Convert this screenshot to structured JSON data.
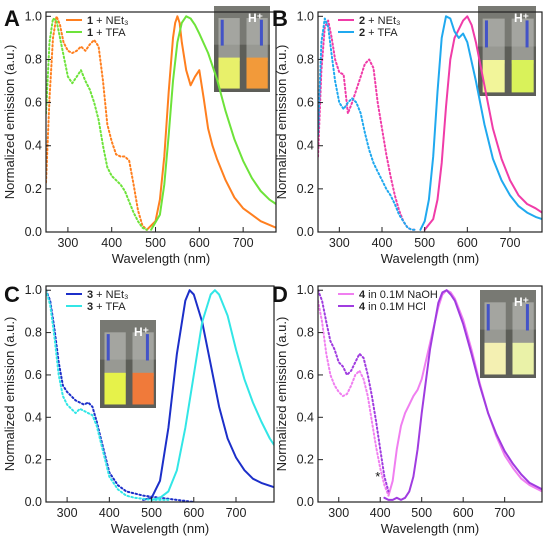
{
  "chart_data": [
    {
      "panel": "A",
      "type": "line",
      "xlabel": "Wavelength (nm)",
      "ylabel": "Normalized emission (a.u.)",
      "xlim": [
        250,
        775
      ],
      "ylim": [
        0,
        1.02
      ],
      "xticks": [
        300,
        400,
        500,
        600,
        700
      ],
      "yticks": [
        0.0,
        0.2,
        0.4,
        0.6,
        0.8,
        1.0
      ],
      "legend_position": "top-left",
      "photo_label": "H⁺",
      "series": [
        {
          "name": "1 + NEt₃",
          "compound": "1",
          "reagent": " + NEt₃",
          "color": "#ff7f1f",
          "excitation": {
            "x": [
              250,
              258,
              266,
              274,
              282,
              290,
              300,
              310,
              320,
              330,
              340,
              350,
              360,
              370,
              380,
              390,
              400,
              410,
              420,
              430,
              440,
              450,
              460,
              470,
              480
            ],
            "y": [
              0.23,
              0.62,
              0.9,
              1.0,
              0.96,
              0.88,
              0.84,
              0.83,
              0.84,
              0.86,
              0.84,
              0.87,
              0.89,
              0.86,
              0.7,
              0.5,
              0.42,
              0.36,
              0.35,
              0.35,
              0.33,
              0.22,
              0.1,
              0.03,
              0.01
            ]
          },
          "emission": {
            "x": [
              480,
              500,
              510,
              520,
              530,
              540,
              545,
              550,
              555,
              560,
              570,
              580,
              590,
              600,
              610,
              620,
              630,
              640,
              660,
              680,
              700,
              720,
              740,
              775
            ],
            "y": [
              0.01,
              0.05,
              0.15,
              0.35,
              0.65,
              0.9,
              0.97,
              1.0,
              0.97,
              0.88,
              0.75,
              0.68,
              0.72,
              0.75,
              0.62,
              0.48,
              0.4,
              0.34,
              0.24,
              0.16,
              0.11,
              0.08,
              0.05,
              0.02
            ]
          }
        },
        {
          "name": "1 + TFA",
          "compound": "1",
          "reagent": " + TFA",
          "color": "#6de33a",
          "excitation": {
            "x": [
              250,
              258,
              266,
              274,
              282,
              290,
              300,
              310,
              320,
              330,
              340,
              350,
              360,
              370,
              380,
              390,
              400,
              410,
              420,
              430,
              440,
              450,
              460,
              470,
              480
            ],
            "y": [
              0.55,
              0.88,
              0.99,
              0.98,
              0.9,
              0.82,
              0.72,
              0.69,
              0.72,
              0.75,
              0.7,
              0.66,
              0.6,
              0.52,
              0.4,
              0.3,
              0.26,
              0.24,
              0.22,
              0.19,
              0.14,
              0.09,
              0.05,
              0.02,
              0.01
            ]
          },
          "emission": {
            "x": [
              490,
              510,
              520,
              530,
              540,
              550,
              560,
              570,
              580,
              590,
              600,
              620,
              640,
              660,
              680,
              700,
              720,
              740,
              760,
              775
            ],
            "y": [
              0.01,
              0.08,
              0.22,
              0.45,
              0.7,
              0.88,
              0.97,
              1.0,
              0.99,
              0.96,
              0.92,
              0.83,
              0.71,
              0.56,
              0.43,
              0.33,
              0.25,
              0.19,
              0.15,
              0.13
            ]
          }
        }
      ]
    },
    {
      "panel": "B",
      "type": "line",
      "xlabel": "Wavelength (nm)",
      "ylabel": "Normalized emission (a.u.)",
      "xlim": [
        250,
        775
      ],
      "ylim": [
        0,
        1.02
      ],
      "xticks": [
        300,
        400,
        500,
        600,
        700
      ],
      "yticks": [
        0.0,
        0.2,
        0.4,
        0.6,
        0.8,
        1.0
      ],
      "legend_position": "top-left",
      "photo_label": "H⁺",
      "series": [
        {
          "name": "2 + NEt₃",
          "compound": "2",
          "reagent": " + NEt₃",
          "color": "#f03ca8",
          "excitation": {
            "x": [
              250,
              258,
              266,
              274,
              282,
              290,
              300,
              310,
              320,
              330,
              340,
              350,
              360,
              370,
              380,
              390,
              400,
              410,
              420,
              430,
              440,
              450,
              460,
              470,
              480
            ],
            "y": [
              0.35,
              0.75,
              0.95,
              0.98,
              0.9,
              0.8,
              0.74,
              0.73,
              0.55,
              0.6,
              0.66,
              0.72,
              0.78,
              0.8,
              0.76,
              0.6,
              0.48,
              0.36,
              0.26,
              0.17,
              0.1,
              0.05,
              0.02,
              0.01,
              0.01
            ]
          },
          "emission": {
            "x": [
              500,
              520,
              530,
              540,
              550,
              560,
              570,
              580,
              590,
              600,
              610,
              620,
              640,
              660,
              680,
              700,
              720,
              740,
              760,
              775
            ],
            "y": [
              0.01,
              0.06,
              0.15,
              0.32,
              0.58,
              0.8,
              0.9,
              0.94,
              0.98,
              1.0,
              0.96,
              0.88,
              0.68,
              0.48,
              0.34,
              0.24,
              0.17,
              0.13,
              0.11,
              0.09
            ]
          }
        },
        {
          "name": "2 + TFA",
          "compound": "2",
          "reagent": " + TFA",
          "color": "#20a9ef",
          "excitation": {
            "x": [
              250,
              258,
              266,
              274,
              282,
              290,
              300,
              310,
              320,
              330,
              340,
              350,
              360,
              370,
              380,
              390,
              400,
              410,
              420,
              430,
              440,
              450,
              460,
              470,
              480
            ],
            "y": [
              0.45,
              0.88,
              0.99,
              0.95,
              0.82,
              0.7,
              0.6,
              0.57,
              0.6,
              0.62,
              0.6,
              0.55,
              0.46,
              0.38,
              0.32,
              0.28,
              0.24,
              0.2,
              0.17,
              0.13,
              0.08,
              0.05,
              0.02,
              0.01,
              0.01
            ]
          },
          "emission": {
            "x": [
              490,
              500,
              510,
              520,
              530,
              540,
              550,
              560,
              570,
              580,
              590,
              600,
              620,
              640,
              660,
              680,
              700,
              720,
              740,
              760,
              775
            ],
            "y": [
              0.01,
              0.05,
              0.15,
              0.35,
              0.65,
              0.9,
              1.0,
              0.99,
              0.93,
              0.9,
              0.92,
              0.88,
              0.7,
              0.5,
              0.34,
              0.24,
              0.17,
              0.12,
              0.09,
              0.07,
              0.06
            ]
          }
        }
      ]
    },
    {
      "panel": "C",
      "type": "line",
      "xlabel": "Wavelength (nm)",
      "ylabel": "Normalized emission (a.u.)",
      "xlim": [
        250,
        790
      ],
      "ylim": [
        0,
        1.02
      ],
      "xticks": [
        300,
        400,
        500,
        600,
        700
      ],
      "yticks": [
        0.0,
        0.2,
        0.4,
        0.6,
        0.8,
        1.0
      ],
      "legend_position": "top-left",
      "photo_label": "H⁺",
      "series": [
        {
          "name": "3 + NEt₃",
          "compound": "3",
          "reagent": " + NEt₃",
          "color": "#1c2fc9",
          "excitation": {
            "x": [
              250,
              260,
              270,
              280,
              290,
              300,
              310,
              320,
              330,
              340,
              350,
              360,
              370,
              380,
              390,
              400,
              420,
              440,
              460,
              480,
              500,
              520,
              540,
              560,
              580,
              600
            ],
            "y": [
              1.0,
              0.95,
              0.82,
              0.66,
              0.55,
              0.52,
              0.5,
              0.48,
              0.47,
              0.46,
              0.47,
              0.45,
              0.38,
              0.3,
              0.22,
              0.14,
              0.08,
              0.05,
              0.04,
              0.03,
              0.025,
              0.02,
              0.015,
              0.01,
              0.005,
              0.0
            ]
          },
          "emission": {
            "x": [
              480,
              500,
              520,
              540,
              560,
              580,
              590,
              600,
              620,
              640,
              660,
              680,
              700,
              720,
              740,
              760,
              790
            ],
            "y": [
              0.01,
              0.02,
              0.1,
              0.35,
              0.7,
              0.95,
              1.0,
              0.98,
              0.85,
              0.65,
              0.45,
              0.3,
              0.21,
              0.15,
              0.11,
              0.09,
              0.07
            ]
          }
        },
        {
          "name": "3 + TFA",
          "compound": "3",
          "reagent": " + TFA",
          "color": "#32e6e6",
          "excitation": {
            "x": [
              250,
              260,
              270,
              280,
              290,
              300,
              310,
              320,
              330,
              340,
              350,
              360,
              370,
              380,
              390,
              400,
              420,
              440,
              460,
              480,
              500,
              520,
              540
            ],
            "y": [
              1.0,
              0.93,
              0.78,
              0.6,
              0.5,
              0.46,
              0.44,
              0.42,
              0.44,
              0.43,
              0.42,
              0.41,
              0.36,
              0.28,
              0.2,
              0.12,
              0.06,
              0.03,
              0.02,
              0.015,
              0.01,
              0.01,
              0.01
            ]
          },
          "emission": {
            "x": [
              500,
              520,
              540,
              560,
              580,
              600,
              620,
              640,
              650,
              660,
              680,
              700,
              720,
              740,
              760,
              780,
              790
            ],
            "y": [
              0.01,
              0.02,
              0.05,
              0.15,
              0.35,
              0.6,
              0.85,
              0.98,
              1.0,
              0.98,
              0.88,
              0.72,
              0.58,
              0.47,
              0.38,
              0.3,
              0.27
            ]
          }
        }
      ]
    },
    {
      "panel": "D",
      "type": "line",
      "xlabel": "Wavelength (nm)",
      "ylabel": "Normalized emission (a.u.)",
      "xlim": [
        250,
        790
      ],
      "ylim": [
        0,
        1.02
      ],
      "xticks": [
        300,
        400,
        500,
        600,
        700
      ],
      "yticks": [
        0.0,
        0.2,
        0.4,
        0.6,
        0.8,
        1.0
      ],
      "legend_position": "top-left",
      "photo_label": "H⁺",
      "annotation": "*",
      "series": [
        {
          "name": "4 in 0.1M NaOH",
          "compound": "4",
          "reagent": " in 0.1M NaOH",
          "color": "#f07ff0",
          "excitation": {
            "x": [
              250,
              260,
              270,
              280,
              290,
              300,
              310,
              320,
              330,
              340,
              350,
              360,
              370,
              380,
              390,
              400,
              410,
              420
            ],
            "y": [
              0.95,
              0.85,
              0.7,
              0.6,
              0.55,
              0.52,
              0.5,
              0.51,
              0.55,
              0.6,
              0.62,
              0.58,
              0.5,
              0.38,
              0.26,
              0.16,
              0.08,
              0.03
            ]
          },
          "emission": {
            "x": [
              420,
              430,
              440,
              450,
              460,
              470,
              480,
              490,
              500,
              520,
              540,
              550,
              560,
              570,
              580,
              600,
              620,
              640,
              660,
              680,
              700,
              720,
              740,
              760,
              790
            ],
            "y": [
              0.03,
              0.1,
              0.25,
              0.36,
              0.42,
              0.46,
              0.5,
              0.53,
              0.58,
              0.75,
              0.92,
              0.98,
              1.0,
              0.99,
              0.96,
              0.86,
              0.72,
              0.56,
              0.42,
              0.31,
              0.22,
              0.16,
              0.11,
              0.08,
              0.05
            ]
          }
        },
        {
          "name": "4 in 0.1M HCl",
          "compound": "4",
          "reagent": " in 0.1M HCl",
          "color": "#a03ce0",
          "excitation": {
            "x": [
              250,
              260,
              270,
              280,
              290,
              300,
              310,
              320,
              330,
              340,
              350,
              360,
              370,
              380,
              390,
              400,
              410,
              420
            ],
            "y": [
              1.0,
              0.95,
              0.85,
              0.76,
              0.72,
              0.66,
              0.64,
              0.6,
              0.62,
              0.66,
              0.7,
              0.68,
              0.6,
              0.5,
              0.38,
              0.25,
              0.12,
              0.05
            ]
          },
          "emission": {
            "x": [
              410,
              420,
              430,
              440,
              450,
              460,
              470,
              480,
              490,
              500,
              520,
              540,
              550,
              560,
              570,
              580,
              600,
              620,
              640,
              660,
              680,
              700,
              720,
              740,
              760,
              790
            ],
            "y": [
              0.02,
              0.01,
              0.01,
              0.02,
              0.01,
              0.02,
              0.05,
              0.12,
              0.25,
              0.42,
              0.72,
              0.94,
              0.99,
              1.0,
              0.98,
              0.95,
              0.84,
              0.7,
              0.55,
              0.42,
              0.32,
              0.24,
              0.18,
              0.13,
              0.09,
              0.06
            ]
          }
        }
      ]
    }
  ]
}
